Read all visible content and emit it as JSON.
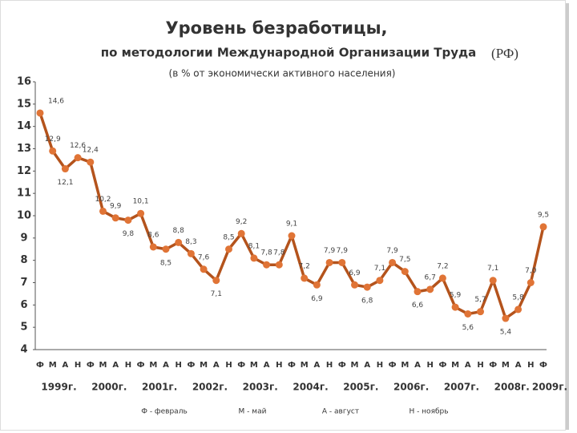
{
  "chart_data": {
    "type": "line",
    "title": "Уровень безработицы,",
    "subtitle": "по методологии Международной Организации Труда",
    "region": "(РФ)",
    "note": "(в % от экономически активного населения)",
    "categories": [
      "Ф",
      "М",
      "А",
      "Н",
      "Ф",
      "М",
      "А",
      "Н",
      "Ф",
      "М",
      "А",
      "Н",
      "Ф",
      "М",
      "А",
      "Н",
      "Ф",
      "М",
      "А",
      "Н",
      "Ф",
      "М",
      "А",
      "Н",
      "Ф",
      "М",
      "А",
      "Н",
      "Ф",
      "М",
      "А",
      "Н",
      "Ф",
      "М",
      "А",
      "Н",
      "Ф",
      "М",
      "А",
      "Н",
      "Ф"
    ],
    "years": [
      "1999г.",
      "2000г.",
      "2001г.",
      "2002г.",
      "2003г.",
      "2004г.",
      "2005г.",
      "2006г.",
      "2007г.",
      "2008г.",
      "2009г."
    ],
    "series": [
      {
        "name": "Уровень безработицы",
        "color": "#b4531c",
        "marker_color": "#e07436",
        "values": [
          14.6,
          12.9,
          12.1,
          12.6,
          12.4,
          10.2,
          9.9,
          9.8,
          10.1,
          8.6,
          8.5,
          8.8,
          8.3,
          7.6,
          7.1,
          8.5,
          9.2,
          8.1,
          7.8,
          7.8,
          9.1,
          7.2,
          6.9,
          7.9,
          7.9,
          6.9,
          6.8,
          7.1,
          7.9,
          7.5,
          6.6,
          6.7,
          7.2,
          5.9,
          5.6,
          5.7,
          7.1,
          5.4,
          5.8,
          7.0,
          9.5
        ],
        "value_labels": [
          "14,6",
          "12,9",
          "12,1",
          "12,6",
          "12,4",
          "10,2",
          "9,9",
          "9,8",
          "10,1",
          "8,6",
          "8,5",
          "8,8",
          "8,3",
          "7,6",
          "7,1",
          "8,5",
          "9,2",
          "8,1",
          "7,8",
          "7,8",
          "9,1",
          "7,2",
          "6,9",
          "7,9",
          "7,9",
          "6,9",
          "6,8",
          "7,1",
          "7,9",
          "7,5",
          "6,6",
          "6,7",
          "7,2",
          "5,9",
          "5,6",
          "5,7",
          "7,1",
          "5,4",
          "5,8",
          "7,0",
          "9,5"
        ]
      }
    ],
    "ylim": [
      4,
      16
    ],
    "yticks": [
      4,
      5,
      6,
      7,
      8,
      9,
      10,
      11,
      12,
      13,
      14,
      15,
      16
    ],
    "legend_notes": [
      "Ф - февраль",
      "М - май",
      "А - август",
      "Н - ноябрь"
    ]
  }
}
